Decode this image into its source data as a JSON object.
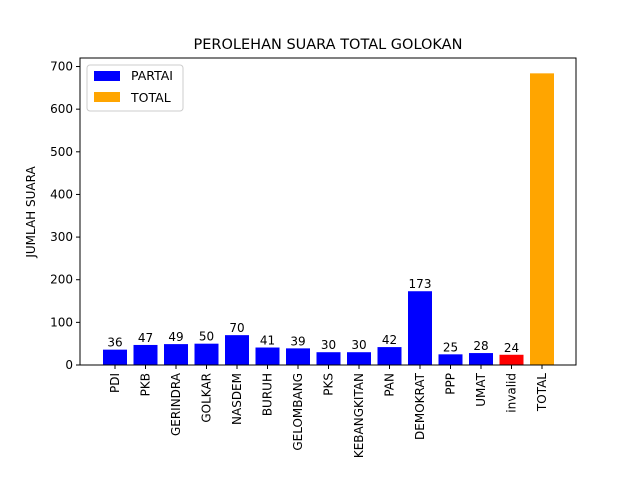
{
  "chart_data": {
    "type": "bar",
    "title": "PEROLEHAN SUARA TOTAL GOLOKAN",
    "xlabel": "",
    "ylabel": "JUMLAH SUARA",
    "ylim": [
      0,
      720
    ],
    "yticks": [
      0,
      100,
      200,
      300,
      400,
      500,
      600,
      700
    ],
    "grid": false,
    "legend_position": "top-left",
    "categories": [
      "PDI",
      "PKB",
      "GERINDRA",
      "GOLKAR",
      "NASDEM",
      "BURUH",
      "GELOMBANG",
      "PKS",
      "KEBANGKITAN",
      "PAN",
      "DEMOKRAT",
      "PPP",
      "UMAT",
      "invalid",
      "TOTAL"
    ],
    "values": [
      36,
      47,
      49,
      50,
      70,
      41,
      39,
      30,
      30,
      42,
      173,
      25,
      28,
      24,
      684
    ],
    "labels": [
      "36",
      "47",
      "49",
      "50",
      "70",
      "41",
      "39",
      "30",
      "30",
      "42",
      "173",
      "25",
      "28",
      "24",
      ""
    ],
    "bar_colors": [
      "#0000ff",
      "#0000ff",
      "#0000ff",
      "#0000ff",
      "#0000ff",
      "#0000ff",
      "#0000ff",
      "#0000ff",
      "#0000ff",
      "#0000ff",
      "#0000ff",
      "#0000ff",
      "#0000ff",
      "#ff0000",
      "#ffa500"
    ],
    "legend": [
      {
        "name": "PARTAI",
        "color": "#0000ff"
      },
      {
        "name": "TOTAL",
        "color": "#ffa500"
      }
    ]
  }
}
